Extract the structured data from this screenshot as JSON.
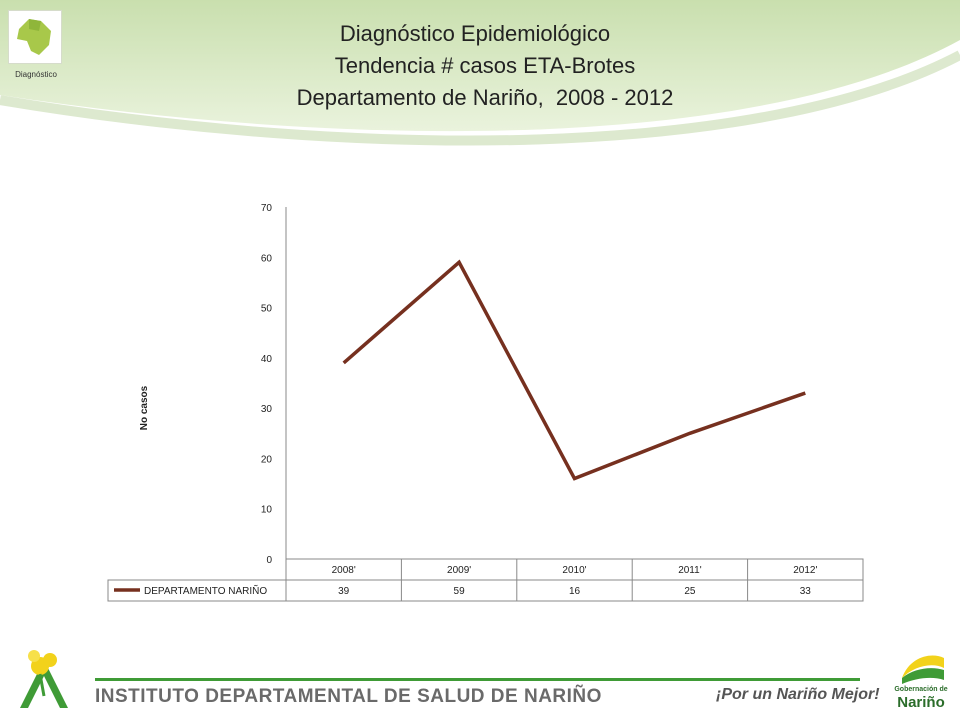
{
  "header": {
    "title_lines": [
      "Diagnóstico Epidemiológico",
      "Tendencia # casos ETA-Brotes",
      "Departamento de Nariño,  2008 - 2012"
    ],
    "logo_caption": "Diagnóstico",
    "logo_icon": "narino-map-icon"
  },
  "chart_data": {
    "type": "line",
    "categories": [
      "2008'",
      "2009'",
      "2010'",
      "2011'",
      "2012'"
    ],
    "series": [
      {
        "name": "DEPARTAMENTO NARIÑO",
        "values": [
          39,
          59,
          16,
          25,
          33
        ]
      }
    ],
    "title": "",
    "xlabel": "",
    "ylabel": "No casos",
    "ylim": [
      0,
      70
    ],
    "yticks": [
      0,
      10,
      20,
      30,
      40,
      50,
      60,
      70
    ],
    "grid": false,
    "legend": "data-table",
    "line_color": "#76301f"
  },
  "footer": {
    "organization": "INSTITUTO DEPARTAMENTAL DE SALUD DE NARIÑO",
    "slogan": "¡Por un Nariño Mejor!",
    "gob_small": "Gobernación de",
    "gob_big": "Nariño",
    "left_logo_icon": "flower-logo-icon",
    "right_logo_icon": "gobernacion-flag-icon",
    "accent_color": "#3f9b36"
  }
}
